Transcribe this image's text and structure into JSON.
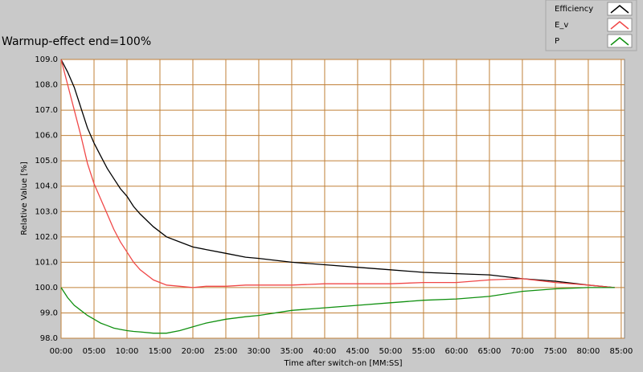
{
  "chart_data": {
    "type": "line",
    "title": "Warmup-effect end=100%",
    "xlabel": "Time after switch-on [MM:SS]",
    "ylabel": "Relative Value [%]",
    "x": [
      0,
      1,
      2,
      3,
      4,
      5,
      6,
      7,
      8,
      9,
      10,
      11,
      12,
      14,
      16,
      18,
      20,
      22,
      25,
      28,
      30,
      35,
      40,
      45,
      50,
      55,
      60,
      65,
      70,
      75,
      80,
      84
    ],
    "series": [
      {
        "name": "Efficiency",
        "color": "#000000",
        "values": [
          109,
          108.5,
          107.9,
          107.1,
          106.3,
          105.7,
          105.2,
          104.7,
          104.3,
          103.9,
          103.6,
          103.2,
          102.9,
          102.4,
          102,
          101.8,
          101.6,
          101.5,
          101.35,
          101.2,
          101.15,
          101,
          100.9,
          100.8,
          100.7,
          100.6,
          100.55,
          100.5,
          100.35,
          100.25,
          100.1,
          100
        ]
      },
      {
        "name": "E_v",
        "color": "#f04848",
        "values": [
          109,
          108,
          107,
          106,
          104.9,
          104.1,
          103.5,
          102.9,
          102.3,
          101.8,
          101.4,
          101,
          100.7,
          100.3,
          100.1,
          100.05,
          100,
          100.05,
          100.05,
          100.1,
          100.1,
          100.1,
          100.15,
          100.15,
          100.15,
          100.2,
          100.2,
          100.3,
          100.35,
          100.2,
          100.1,
          100
        ]
      },
      {
        "name": "P",
        "color": "#109010",
        "values": [
          100,
          99.6,
          99.3,
          99.1,
          98.9,
          98.75,
          98.6,
          98.5,
          98.4,
          98.35,
          98.3,
          98.27,
          98.25,
          98.2,
          98.2,
          98.3,
          98.45,
          98.6,
          98.75,
          98.85,
          98.9,
          99.1,
          99.2,
          99.3,
          99.4,
          99.5,
          99.55,
          99.65,
          99.85,
          99.95,
          100,
          100
        ]
      }
    ],
    "xlim": [
      0,
      85.5
    ],
    "ylim": [
      98,
      109
    ],
    "xticks": [
      {
        "value": 0,
        "label": "00:00"
      },
      {
        "value": 5,
        "label": "05:00"
      },
      {
        "value": 10,
        "label": "10:00"
      },
      {
        "value": 15,
        "label": "15:00"
      },
      {
        "value": 20,
        "label": "20:00"
      },
      {
        "value": 25,
        "label": "25:00"
      },
      {
        "value": 30,
        "label": "30:00"
      },
      {
        "value": 35,
        "label": "35:00"
      },
      {
        "value": 40,
        "label": "40:00"
      },
      {
        "value": 45,
        "label": "45:00"
      },
      {
        "value": 50,
        "label": "50:00"
      },
      {
        "value": 55,
        "label": "55:00"
      },
      {
        "value": 60,
        "label": "60:00"
      },
      {
        "value": 65,
        "label": "65:00"
      },
      {
        "value": 70,
        "label": "70:00"
      },
      {
        "value": 75,
        "label": "75:00"
      },
      {
        "value": 80,
        "label": "80:00"
      },
      {
        "value": 85,
        "label": "85:00"
      }
    ],
    "yticks": [
      {
        "value": 98,
        "label": "98.0"
      },
      {
        "value": 99,
        "label": "99.0"
      },
      {
        "value": 100,
        "label": "100.0"
      },
      {
        "value": 101,
        "label": "101.0"
      },
      {
        "value": 102,
        "label": "102.0"
      },
      {
        "value": 103,
        "label": "103.0"
      },
      {
        "value": 104,
        "label": "104.0"
      },
      {
        "value": 105,
        "label": "105.0"
      },
      {
        "value": 106,
        "label": "106.0"
      },
      {
        "value": 107,
        "label": "107.0"
      },
      {
        "value": 108,
        "label": "108.0"
      },
      {
        "value": 109,
        "label": "109.0"
      }
    ],
    "grid": true,
    "grid_color": "#c08038",
    "legend": "top-right"
  }
}
